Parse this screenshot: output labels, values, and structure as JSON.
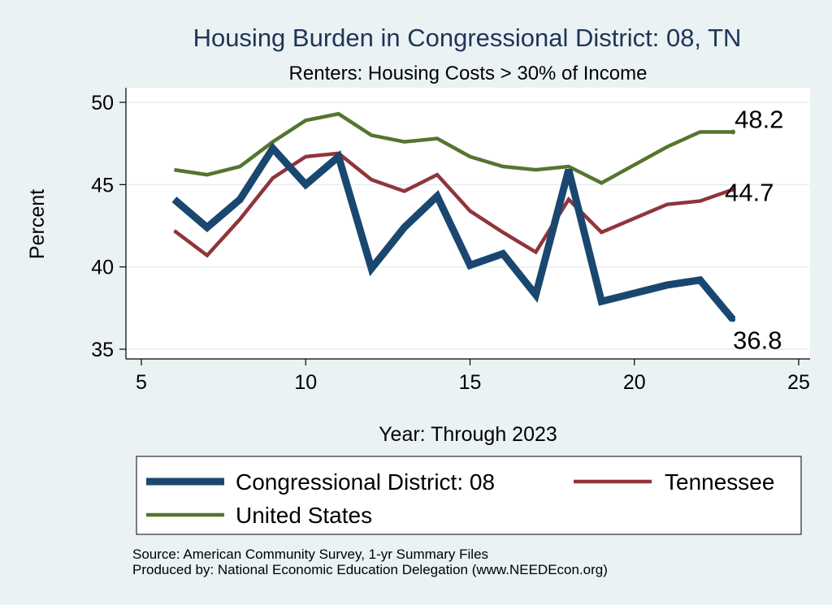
{
  "chart_data": {
    "type": "line",
    "title": "Housing Burden in Congressional District:  08, TN",
    "subtitle": "Renters: Housing Costs > 30% of Income",
    "xlabel": "Year: Through 2023",
    "ylabel": "Percent",
    "xlim": [
      5,
      25
    ],
    "ylim": [
      35,
      50
    ],
    "xticks": [
      5,
      10,
      15,
      20,
      25
    ],
    "yticks": [
      35,
      40,
      45,
      50
    ],
    "grid": true,
    "series": [
      {
        "name": "Congressional District:  08",
        "color": "#1a476f",
        "x": [
          6,
          7,
          8,
          9,
          10,
          11,
          12,
          13,
          14,
          15,
          16,
          17,
          18,
          19,
          21,
          22,
          23
        ],
        "values": [
          44.1,
          42.4,
          44.1,
          47.2,
          45.0,
          46.7,
          39.9,
          42.4,
          44.3,
          40.1,
          40.8,
          38.3,
          45.9,
          37.9,
          38.9,
          39.2,
          36.8
        ],
        "end_label": "36.8"
      },
      {
        "name": "Tennessee",
        "color": "#90353b",
        "x": [
          6,
          7,
          8,
          9,
          10,
          11,
          12,
          13,
          14,
          15,
          16,
          17,
          18,
          19,
          21,
          22,
          23
        ],
        "values": [
          42.2,
          40.7,
          42.9,
          45.4,
          46.7,
          46.9,
          45.3,
          44.6,
          45.6,
          43.4,
          42.1,
          40.9,
          44.1,
          42.1,
          43.8,
          44.0,
          44.7
        ],
        "end_label": "44.7"
      },
      {
        "name": "United States",
        "color": "#55752f",
        "x": [
          6,
          7,
          8,
          9,
          10,
          11,
          12,
          13,
          14,
          15,
          16,
          17,
          18,
          19,
          21,
          22,
          23
        ],
        "values": [
          45.9,
          45.6,
          46.1,
          47.6,
          48.9,
          49.3,
          48.0,
          47.6,
          47.8,
          46.7,
          46.1,
          45.9,
          46.1,
          45.1,
          47.3,
          48.2,
          48.2
        ],
        "end_label": "48.2"
      }
    ],
    "legend": [
      {
        "label": "Congressional District:  08",
        "color": "#1a476f"
      },
      {
        "label": "Tennessee",
        "color": "#90353b"
      },
      {
        "label": "United States",
        "color": "#55752f"
      }
    ],
    "notes": [
      "Source: American Community Survey, 1-yr Summary Files",
      "Produced by: National Economic Education Delegation (www.NEEDEcon.org)"
    ]
  }
}
